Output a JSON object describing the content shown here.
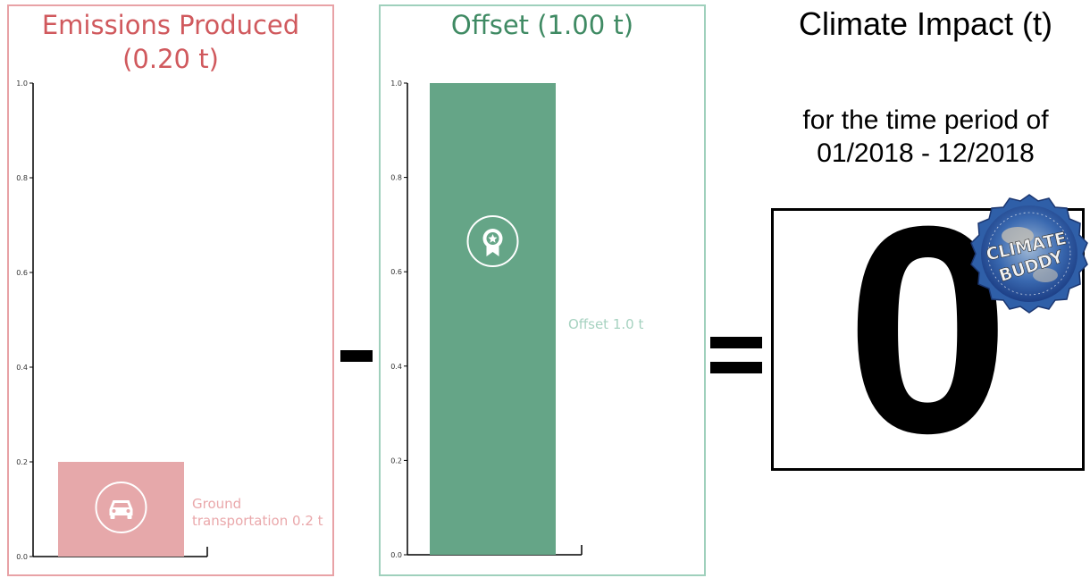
{
  "colors": {
    "emissions_accent": "#d0595d",
    "emissions_bar": "#e6a8aa",
    "emissions_border": "#e8a2a6",
    "offset_accent": "#3f8a63",
    "offset_bar": "#65a587",
    "offset_border": "#9fd0bc"
  },
  "emissions": {
    "title_line1": "Emissions Produced",
    "title_line2": "(0.20 t)",
    "bar_label_line1": "Ground",
    "bar_label_line2": "transportation 0.2 t",
    "icon": "car-icon"
  },
  "offset": {
    "title": "Offset (1.00 t)",
    "bar_label": "Offset 1.0 t",
    "icon": "award-ribbon-icon"
  },
  "result": {
    "heading": "Climate Impact (t)",
    "period_line1": "for the time period of",
    "period_line2": "01/2018 - 12/2018",
    "value": "0",
    "badge_text_1": "CLIMATE",
    "badge_text_2": "BUDDY"
  },
  "operators": {
    "minus": "minus-sign",
    "equals": "equals-sign"
  },
  "chart_data": [
    {
      "type": "bar",
      "title": "Emissions Produced (0.20 t)",
      "categories": [
        "Ground transportation"
      ],
      "values": [
        0.2
      ],
      "ylim": [
        0,
        1.0
      ],
      "yticks": [
        "0.0",
        "0.2",
        "0.4",
        "0.6",
        "0.8",
        "1.0"
      ],
      "grid": false
    },
    {
      "type": "bar",
      "title": "Offset (1.00 t)",
      "categories": [
        "Offset"
      ],
      "values": [
        1.0
      ],
      "ylim": [
        0,
        1.0
      ],
      "yticks": [
        "0.0",
        "0.2",
        "0.4",
        "0.6",
        "0.8",
        "1.0"
      ],
      "grid": false
    }
  ]
}
